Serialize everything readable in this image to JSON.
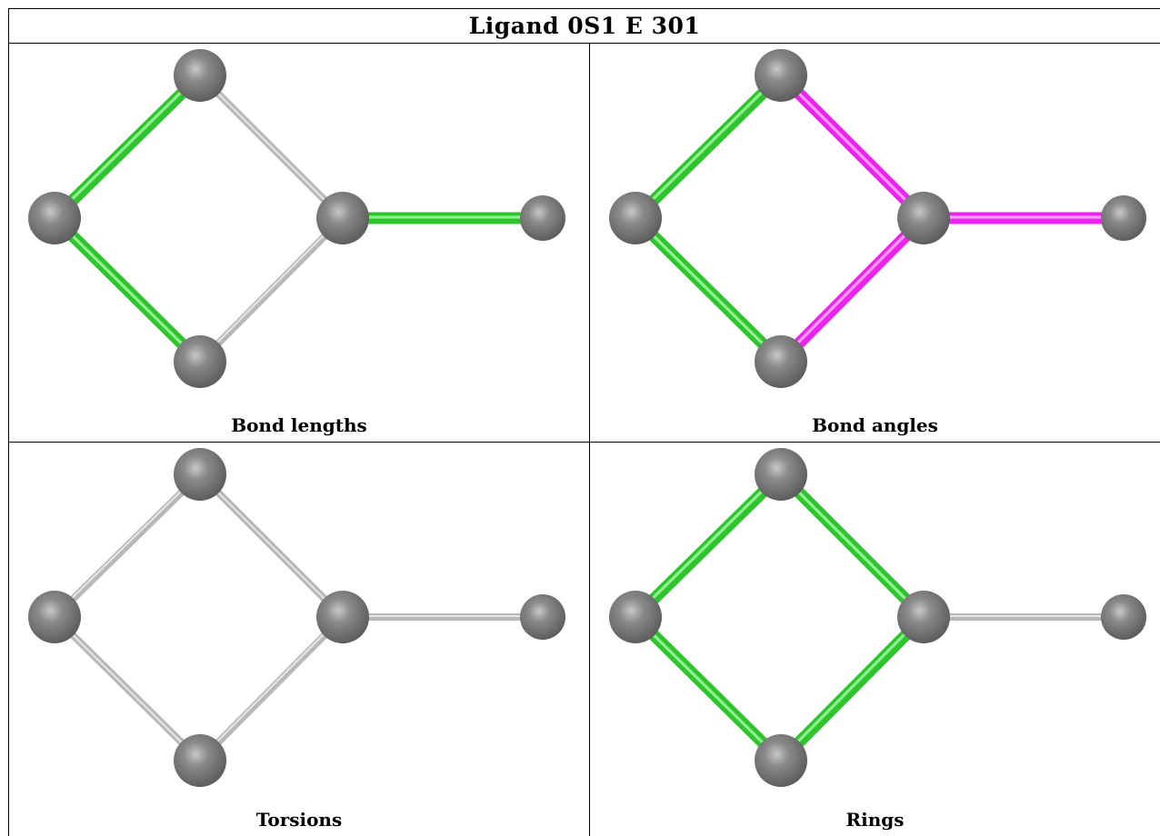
{
  "title": "Ligand 0S1 E 301",
  "colors": {
    "green": "#2ec42e",
    "magenta": "#ee22ee",
    "gray_bond": "#b8b8b8",
    "atom": "#7a7a7a"
  },
  "panels": [
    {
      "caption": "Bond lengths",
      "bonds": {
        "b1": "green",
        "b2": "gray",
        "b3": "green",
        "b4": "gray",
        "b5": "green"
      }
    },
    {
      "caption": "Bond angles",
      "bonds": {
        "b1": "green",
        "b2": "magenta",
        "b3": "green",
        "b4": "magenta",
        "b5": "magenta"
      }
    },
    {
      "caption": "Torsions",
      "bonds": {
        "b1": "gray",
        "b2": "gray",
        "b3": "gray",
        "b4": "gray",
        "b5": "gray"
      }
    },
    {
      "caption": "Rings",
      "bonds": {
        "b1": "green",
        "b2": "green",
        "b3": "green",
        "b4": "green",
        "b5": "gray"
      }
    }
  ]
}
